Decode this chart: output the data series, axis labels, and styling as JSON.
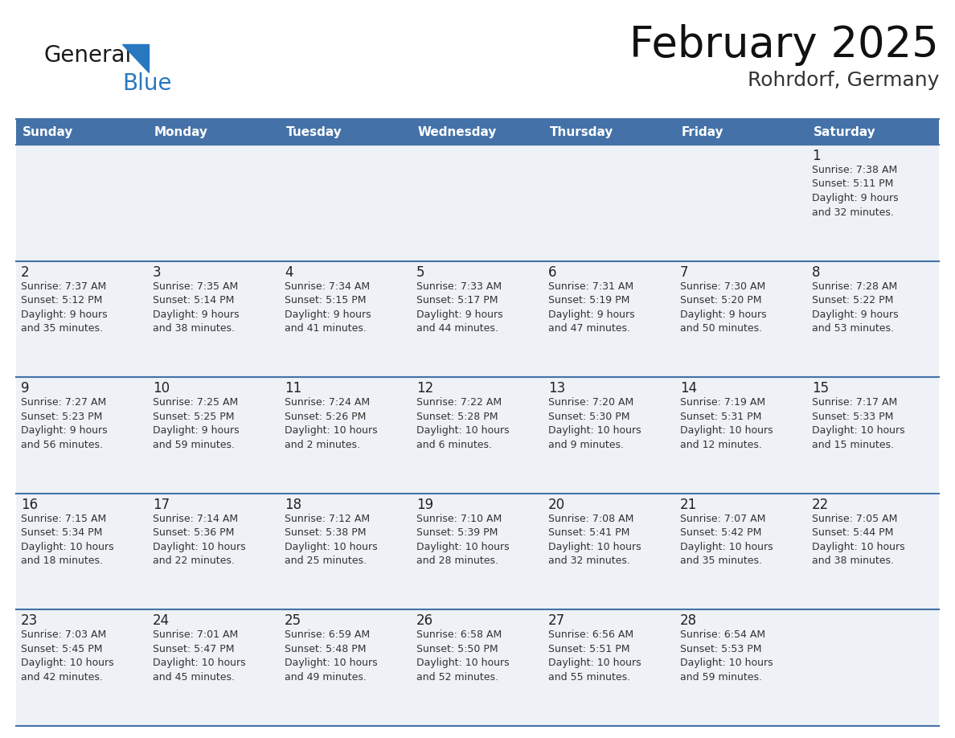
{
  "title": "February 2025",
  "subtitle": "Rohrdorf, Germany",
  "days_of_week": [
    "Sunday",
    "Monday",
    "Tuesday",
    "Wednesday",
    "Thursday",
    "Friday",
    "Saturday"
  ],
  "header_bg": "#4472a8",
  "header_text_color": "#ffffff",
  "row_bg": "#eef1f5",
  "divider_color": "#4472a8",
  "day_num_color": "#222222",
  "cell_text_color": "#333333",
  "logo_general_color": "#1a1a1a",
  "logo_blue_color": "#2878c0",
  "bg_color": "#ffffff",
  "weeks": [
    [
      {
        "day": "",
        "info": ""
      },
      {
        "day": "",
        "info": ""
      },
      {
        "day": "",
        "info": ""
      },
      {
        "day": "",
        "info": ""
      },
      {
        "day": "",
        "info": ""
      },
      {
        "day": "",
        "info": ""
      },
      {
        "day": "1",
        "info": "Sunrise: 7:38 AM\nSunset: 5:11 PM\nDaylight: 9 hours\nand 32 minutes."
      }
    ],
    [
      {
        "day": "2",
        "info": "Sunrise: 7:37 AM\nSunset: 5:12 PM\nDaylight: 9 hours\nand 35 minutes."
      },
      {
        "day": "3",
        "info": "Sunrise: 7:35 AM\nSunset: 5:14 PM\nDaylight: 9 hours\nand 38 minutes."
      },
      {
        "day": "4",
        "info": "Sunrise: 7:34 AM\nSunset: 5:15 PM\nDaylight: 9 hours\nand 41 minutes."
      },
      {
        "day": "5",
        "info": "Sunrise: 7:33 AM\nSunset: 5:17 PM\nDaylight: 9 hours\nand 44 minutes."
      },
      {
        "day": "6",
        "info": "Sunrise: 7:31 AM\nSunset: 5:19 PM\nDaylight: 9 hours\nand 47 minutes."
      },
      {
        "day": "7",
        "info": "Sunrise: 7:30 AM\nSunset: 5:20 PM\nDaylight: 9 hours\nand 50 minutes."
      },
      {
        "day": "8",
        "info": "Sunrise: 7:28 AM\nSunset: 5:22 PM\nDaylight: 9 hours\nand 53 minutes."
      }
    ],
    [
      {
        "day": "9",
        "info": "Sunrise: 7:27 AM\nSunset: 5:23 PM\nDaylight: 9 hours\nand 56 minutes."
      },
      {
        "day": "10",
        "info": "Sunrise: 7:25 AM\nSunset: 5:25 PM\nDaylight: 9 hours\nand 59 minutes."
      },
      {
        "day": "11",
        "info": "Sunrise: 7:24 AM\nSunset: 5:26 PM\nDaylight: 10 hours\nand 2 minutes."
      },
      {
        "day": "12",
        "info": "Sunrise: 7:22 AM\nSunset: 5:28 PM\nDaylight: 10 hours\nand 6 minutes."
      },
      {
        "day": "13",
        "info": "Sunrise: 7:20 AM\nSunset: 5:30 PM\nDaylight: 10 hours\nand 9 minutes."
      },
      {
        "day": "14",
        "info": "Sunrise: 7:19 AM\nSunset: 5:31 PM\nDaylight: 10 hours\nand 12 minutes."
      },
      {
        "day": "15",
        "info": "Sunrise: 7:17 AM\nSunset: 5:33 PM\nDaylight: 10 hours\nand 15 minutes."
      }
    ],
    [
      {
        "day": "16",
        "info": "Sunrise: 7:15 AM\nSunset: 5:34 PM\nDaylight: 10 hours\nand 18 minutes."
      },
      {
        "day": "17",
        "info": "Sunrise: 7:14 AM\nSunset: 5:36 PM\nDaylight: 10 hours\nand 22 minutes."
      },
      {
        "day": "18",
        "info": "Sunrise: 7:12 AM\nSunset: 5:38 PM\nDaylight: 10 hours\nand 25 minutes."
      },
      {
        "day": "19",
        "info": "Sunrise: 7:10 AM\nSunset: 5:39 PM\nDaylight: 10 hours\nand 28 minutes."
      },
      {
        "day": "20",
        "info": "Sunrise: 7:08 AM\nSunset: 5:41 PM\nDaylight: 10 hours\nand 32 minutes."
      },
      {
        "day": "21",
        "info": "Sunrise: 7:07 AM\nSunset: 5:42 PM\nDaylight: 10 hours\nand 35 minutes."
      },
      {
        "day": "22",
        "info": "Sunrise: 7:05 AM\nSunset: 5:44 PM\nDaylight: 10 hours\nand 38 minutes."
      }
    ],
    [
      {
        "day": "23",
        "info": "Sunrise: 7:03 AM\nSunset: 5:45 PM\nDaylight: 10 hours\nand 42 minutes."
      },
      {
        "day": "24",
        "info": "Sunrise: 7:01 AM\nSunset: 5:47 PM\nDaylight: 10 hours\nand 45 minutes."
      },
      {
        "day": "25",
        "info": "Sunrise: 6:59 AM\nSunset: 5:48 PM\nDaylight: 10 hours\nand 49 minutes."
      },
      {
        "day": "26",
        "info": "Sunrise: 6:58 AM\nSunset: 5:50 PM\nDaylight: 10 hours\nand 52 minutes."
      },
      {
        "day": "27",
        "info": "Sunrise: 6:56 AM\nSunset: 5:51 PM\nDaylight: 10 hours\nand 55 minutes."
      },
      {
        "day": "28",
        "info": "Sunrise: 6:54 AM\nSunset: 5:53 PM\nDaylight: 10 hours\nand 59 minutes."
      },
      {
        "day": "",
        "info": ""
      }
    ]
  ]
}
